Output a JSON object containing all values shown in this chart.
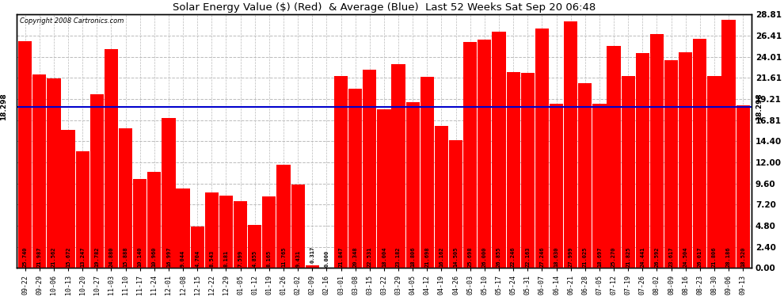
{
  "title": "Solar Energy Value ($) (Red)  & Average (Blue)  Last 52 Weeks Sat Sep 20 06:48",
  "copyright": "Copyright 2008 Cartronics.com",
  "average": 18.298,
  "bar_color": "#ff0000",
  "average_line_color": "#0000cc",
  "background_color": "#ffffff",
  "plot_bg_color": "#ffffff",
  "grid_color": "#bbbbbb",
  "ylim": [
    0.0,
    28.81
  ],
  "ytick_vals": [
    0.0,
    2.4,
    4.8,
    7.2,
    9.6,
    12.0,
    14.4,
    16.81,
    19.21,
    21.61,
    24.01,
    26.41,
    28.81
  ],
  "categories": [
    "09-22",
    "09-29",
    "10-06",
    "10-13",
    "10-20",
    "10-27",
    "11-03",
    "11-10",
    "11-17",
    "11-24",
    "12-01",
    "12-08",
    "12-15",
    "12-22",
    "12-29",
    "01-05",
    "01-12",
    "01-19",
    "01-26",
    "02-02",
    "02-09",
    "02-16",
    "03-01",
    "03-08",
    "03-15",
    "03-22",
    "03-29",
    "04-05",
    "04-12",
    "04-19",
    "04-26",
    "05-03",
    "05-10",
    "05-17",
    "05-24",
    "05-31",
    "06-07",
    "06-14",
    "06-21",
    "06-28",
    "07-05",
    "07-12",
    "07-19",
    "07-26",
    "08-02",
    "08-09",
    "08-16",
    "08-23",
    "08-30",
    "09-06",
    "09-13"
  ],
  "values": [
    25.74,
    21.987,
    21.562,
    15.672,
    13.247,
    19.782,
    24.88,
    15.888,
    10.14,
    10.96,
    16.997,
    9.044,
    4.704,
    8.543,
    8.181,
    7.599,
    4.855,
    8.165,
    11.765,
    9.431,
    0.317,
    0.0,
    21.847,
    20.348,
    22.531,
    18.004,
    23.182,
    18.806,
    21.698,
    16.162,
    14.505,
    25.698,
    26.0,
    26.855,
    22.246,
    22.163,
    27.246,
    18.63,
    27.999,
    21.025,
    18.697,
    25.27,
    21.825,
    24.441,
    26.592,
    23.617,
    24.504,
    26.017,
    21.806,
    28.186,
    18.52
  ]
}
